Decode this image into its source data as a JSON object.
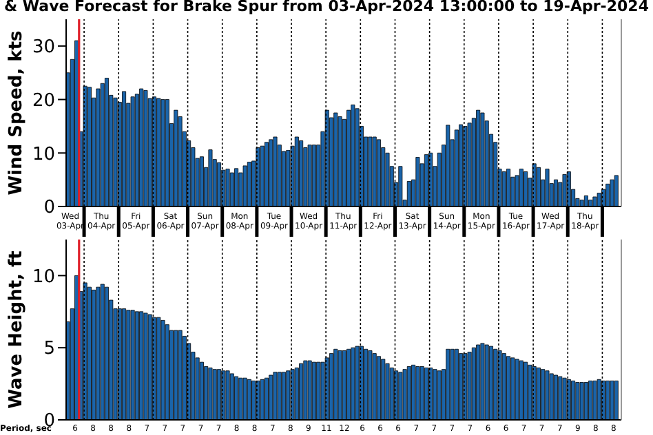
{
  "chart_data": [
    {
      "type": "bar",
      "title": "& Wave Forecast for Brake Spur from 03-Apr-2024 13:00:00 to 19-Apr-2024",
      "ylabel": "Wind Speed, kts",
      "color": "#1a64aa",
      "grid": "x",
      "x": [
        "2024-04-03T13:00",
        "2024-04-03T16:00",
        "2024-04-03T19:00",
        "2024-04-03T22:00",
        "2024-04-04T01:00",
        "2024-04-04T04:00",
        "2024-04-04T07:00",
        "2024-04-04T10:00",
        "2024-04-04T13:00",
        "2024-04-04T16:00",
        "2024-04-04T19:00",
        "2024-04-04T22:00",
        "2024-04-05T01:00",
        "2024-04-05T04:00",
        "2024-04-05T07:00",
        "2024-04-05T10:00",
        "2024-04-05T13:00",
        "2024-04-05T16:00",
        "2024-04-05T19:00",
        "2024-04-05T22:00",
        "2024-04-06T01:00",
        "2024-04-06T04:00",
        "2024-04-06T07:00",
        "2024-04-06T10:00",
        "2024-04-06T13:00",
        "2024-04-06T16:00",
        "2024-04-06T19:00",
        "2024-04-06T22:00",
        "2024-04-07T01:00",
        "2024-04-07T04:00",
        "2024-04-07T07:00",
        "2024-04-07T10:00",
        "2024-04-07T13:00",
        "2024-04-07T16:00",
        "2024-04-07T19:00",
        "2024-04-07T22:00",
        "2024-04-08T01:00",
        "2024-04-08T04:00",
        "2024-04-08T07:00",
        "2024-04-08T10:00",
        "2024-04-08T13:00",
        "2024-04-08T16:00",
        "2024-04-08T19:00",
        "2024-04-08T22:00",
        "2024-04-09T01:00",
        "2024-04-09T04:00",
        "2024-04-09T07:00",
        "2024-04-09T10:00",
        "2024-04-09T13:00",
        "2024-04-09T16:00",
        "2024-04-09T19:00",
        "2024-04-09T22:00",
        "2024-04-10T01:00",
        "2024-04-10T04:00",
        "2024-04-10T07:00",
        "2024-04-10T10:00",
        "2024-04-10T13:00",
        "2024-04-10T16:00",
        "2024-04-10T19:00",
        "2024-04-10T22:00",
        "2024-04-11T01:00",
        "2024-04-11T04:00",
        "2024-04-11T07:00",
        "2024-04-11T10:00",
        "2024-04-11T13:00",
        "2024-04-11T16:00",
        "2024-04-11T19:00",
        "2024-04-11T22:00",
        "2024-04-12T01:00",
        "2024-04-12T04:00",
        "2024-04-12T07:00",
        "2024-04-12T10:00",
        "2024-04-12T13:00",
        "2024-04-12T16:00",
        "2024-04-12T19:00",
        "2024-04-12T22:00",
        "2024-04-13T01:00",
        "2024-04-13T04:00",
        "2024-04-13T07:00",
        "2024-04-13T10:00",
        "2024-04-13T13:00",
        "2024-04-13T16:00",
        "2024-04-13T19:00",
        "2024-04-13T22:00",
        "2024-04-14T01:00",
        "2024-04-14T04:00",
        "2024-04-14T07:00",
        "2024-04-14T10:00",
        "2024-04-14T13:00",
        "2024-04-14T16:00",
        "2024-04-14T19:00",
        "2024-04-14T22:00",
        "2024-04-15T01:00",
        "2024-04-15T04:00",
        "2024-04-15T07:00",
        "2024-04-15T10:00",
        "2024-04-15T13:00",
        "2024-04-15T16:00",
        "2024-04-15T19:00",
        "2024-04-15T22:00",
        "2024-04-16T01:00",
        "2024-04-16T04:00",
        "2024-04-16T07:00",
        "2024-04-16T10:00",
        "2024-04-16T13:00",
        "2024-04-16T16:00",
        "2024-04-16T19:00",
        "2024-04-16T22:00",
        "2024-04-17T01:00",
        "2024-04-17T04:00",
        "2024-04-17T07:00",
        "2024-04-17T10:00",
        "2024-04-17T13:00",
        "2024-04-17T16:00",
        "2024-04-17T19:00",
        "2024-04-17T22:00",
        "2024-04-18T01:00",
        "2024-04-18T04:00",
        "2024-04-18T07:00",
        "2024-04-18T10:00",
        "2024-04-18T13:00",
        "2024-04-18T16:00",
        "2024-04-18T19:00",
        "2024-04-18T22:00",
        "2024-04-19T01:00",
        "2024-04-19T04:00",
        "2024-04-19T07:00",
        "2024-04-19T10:00"
      ],
      "values": [
        25,
        27.5,
        31,
        14,
        22.5,
        22.3,
        20.3,
        22,
        23,
        24,
        20.8,
        20.3,
        19.5,
        21.5,
        19.3,
        20.5,
        21,
        22,
        21.7,
        20.2,
        20.5,
        20.2,
        20,
        20,
        15.5,
        18,
        16.8,
        14,
        12.3,
        11,
        9,
        9.3,
        7.3,
        10.6,
        8.8,
        8.2,
        6.8,
        7,
        6.3,
        7.1,
        6.3,
        7.6,
        8.3,
        8.5,
        11,
        11.3,
        12,
        12.5,
        13,
        11.5,
        10.3,
        10.5,
        11.3,
        13,
        12.3,
        11,
        11.5,
        11.5,
        11.5,
        14,
        18,
        16.6,
        17.5,
        16.8,
        16.3,
        18,
        19,
        18.3,
        15,
        13,
        13,
        13,
        12.5,
        11,
        10,
        7.5,
        4.5,
        7.5,
        1.2,
        4.7,
        5,
        9.2,
        8,
        9.7,
        10,
        7.5,
        10,
        11.5,
        15.2,
        12.5,
        14.3,
        15.3,
        15,
        15.6,
        16.5,
        18,
        17.5,
        16,
        13.5,
        12,
        7,
        6.5,
        7,
        5.5,
        5.8,
        7,
        6.5,
        5.3,
        8,
        7.3,
        5,
        7,
        4.3,
        5,
        4.5,
        6,
        6.5,
        3.2,
        1.5,
        1.2,
        2,
        1.2,
        1.8,
        2.5,
        3.2,
        4.2,
        5,
        5.8
      ],
      "xlim": [
        "2024-04-03T11:31",
        "2024-04-19T13:12"
      ],
      "xticks": [
        {
          "value": "2024-04-03T14:24",
          "label": "Wed 03-Apr"
        },
        {
          "value": "2024-04-04T00:00",
          "label": null
        },
        {
          "value": "2024-04-04T12:00",
          "label": "Thu 04-Apr"
        },
        {
          "value": "2024-04-05T00:00",
          "label": null
        },
        {
          "value": "2024-04-05T12:00",
          "label": "Fri 05-Apr"
        },
        {
          "value": "2024-04-06T00:00",
          "label": null
        },
        {
          "value": "2024-04-06T12:00",
          "label": "Sat 06-Apr"
        },
        {
          "value": "2024-04-07T00:00",
          "label": null
        },
        {
          "value": "2024-04-07T12:00",
          "label": "Sun 07-Apr"
        },
        {
          "value": "2024-04-08T00:00",
          "label": null
        },
        {
          "value": "2024-04-08T12:00",
          "label": "Mon 08-Apr"
        },
        {
          "value": "2024-04-09T00:00",
          "label": null
        },
        {
          "value": "2024-04-09T12:00",
          "label": "Tue 09-Apr"
        },
        {
          "value": "2024-04-10T00:00",
          "label": null
        },
        {
          "value": "2024-04-10T12:00",
          "label": "Wed 10-Apr"
        },
        {
          "value": "2024-04-11T00:00",
          "label": null
        },
        {
          "value": "2024-04-11T12:00",
          "label": "Thu 11-Apr"
        },
        {
          "value": "2024-04-12T00:00",
          "label": null
        },
        {
          "value": "2024-04-12T12:00",
          "label": "Fri 12-Apr"
        },
        {
          "value": "2024-04-13T00:00",
          "label": null
        },
        {
          "value": "2024-04-13T12:00",
          "label": "Sat 13-Apr"
        },
        {
          "value": "2024-04-14T00:00",
          "label": null
        },
        {
          "value": "2024-04-14T12:00",
          "label": "Sun 14-Apr"
        },
        {
          "value": "2024-04-15T00:00",
          "label": null
        },
        {
          "value": "2024-04-15T12:00",
          "label": "Mon 15-Apr"
        },
        {
          "value": "2024-04-16T00:00",
          "label": null
        },
        {
          "value": "2024-04-16T12:00",
          "label": "Tue 16-Apr"
        },
        {
          "value": "2024-04-17T00:00",
          "label": null
        },
        {
          "value": "2024-04-17T12:00",
          "label": "Wed 17-Apr"
        },
        {
          "value": "2024-04-18T00:00",
          "label": null
        },
        {
          "value": "2024-04-18T12:00",
          "label": "Thu 18-Apr"
        },
        {
          "value": "2024-04-19T00:00",
          "label": null
        }
      ],
      "ylim": [
        0,
        35
      ],
      "yticks": [
        0,
        10,
        20,
        30
      ],
      "ref_lines": [
        {
          "axis": "x",
          "value": "2024-04-03T20:30",
          "color": "#e0202a"
        }
      ]
    },
    {
      "type": "bar",
      "ylabel": "Wave Height, ft",
      "color": "#1a64aa",
      "grid": "x",
      "tick_labels": "y",
      "x": [
        "2024-04-03T13:00",
        "2024-04-03T16:00",
        "2024-04-03T19:00",
        "2024-04-03T22:00",
        "2024-04-04T01:00",
        "2024-04-04T04:00",
        "2024-04-04T07:00",
        "2024-04-04T10:00",
        "2024-04-04T13:00",
        "2024-04-04T16:00",
        "2024-04-04T19:00",
        "2024-04-04T22:00",
        "2024-04-05T01:00",
        "2024-04-05T04:00",
        "2024-04-05T07:00",
        "2024-04-05T10:00",
        "2024-04-05T13:00",
        "2024-04-05T16:00",
        "2024-04-05T19:00",
        "2024-04-05T22:00",
        "2024-04-06T01:00",
        "2024-04-06T04:00",
        "2024-04-06T07:00",
        "2024-04-06T10:00",
        "2024-04-06T13:00",
        "2024-04-06T16:00",
        "2024-04-06T19:00",
        "2024-04-06T22:00",
        "2024-04-07T01:00",
        "2024-04-07T04:00",
        "2024-04-07T07:00",
        "2024-04-07T10:00",
        "2024-04-07T13:00",
        "2024-04-07T16:00",
        "2024-04-07T19:00",
        "2024-04-07T22:00",
        "2024-04-08T01:00",
        "2024-04-08T04:00",
        "2024-04-08T07:00",
        "2024-04-08T10:00",
        "2024-04-08T13:00",
        "2024-04-08T16:00",
        "2024-04-08T19:00",
        "2024-04-08T22:00",
        "2024-04-09T01:00",
        "2024-04-09T04:00",
        "2024-04-09T07:00",
        "2024-04-09T10:00",
        "2024-04-09T13:00",
        "2024-04-09T16:00",
        "2024-04-09T19:00",
        "2024-04-09T22:00",
        "2024-04-10T01:00",
        "2024-04-10T04:00",
        "2024-04-10T07:00",
        "2024-04-10T10:00",
        "2024-04-10T13:00",
        "2024-04-10T16:00",
        "2024-04-10T19:00",
        "2024-04-10T22:00",
        "2024-04-11T01:00",
        "2024-04-11T04:00",
        "2024-04-11T07:00",
        "2024-04-11T10:00",
        "2024-04-11T13:00",
        "2024-04-11T16:00",
        "2024-04-11T19:00",
        "2024-04-11T22:00",
        "2024-04-12T01:00",
        "2024-04-12T04:00",
        "2024-04-12T07:00",
        "2024-04-12T10:00",
        "2024-04-12T13:00",
        "2024-04-12T16:00",
        "2024-04-12T19:00",
        "2024-04-12T22:00",
        "2024-04-13T01:00",
        "2024-04-13T04:00",
        "2024-04-13T07:00",
        "2024-04-13T10:00",
        "2024-04-13T13:00",
        "2024-04-13T16:00",
        "2024-04-13T19:00",
        "2024-04-13T22:00",
        "2024-04-14T01:00",
        "2024-04-14T04:00",
        "2024-04-14T07:00",
        "2024-04-14T10:00",
        "2024-04-14T13:00",
        "2024-04-14T16:00",
        "2024-04-14T19:00",
        "2024-04-14T22:00",
        "2024-04-15T01:00",
        "2024-04-15T04:00",
        "2024-04-15T07:00",
        "2024-04-15T10:00",
        "2024-04-15T13:00",
        "2024-04-15T16:00",
        "2024-04-15T19:00",
        "2024-04-15T22:00",
        "2024-04-16T01:00",
        "2024-04-16T04:00",
        "2024-04-16T07:00",
        "2024-04-16T10:00",
        "2024-04-16T13:00",
        "2024-04-16T16:00",
        "2024-04-16T19:00",
        "2024-04-16T22:00",
        "2024-04-17T01:00",
        "2024-04-17T04:00",
        "2024-04-17T07:00",
        "2024-04-17T10:00",
        "2024-04-17T13:00",
        "2024-04-17T16:00",
        "2024-04-17T19:00",
        "2024-04-17T22:00",
        "2024-04-18T01:00",
        "2024-04-18T04:00",
        "2024-04-18T07:00",
        "2024-04-18T10:00",
        "2024-04-18T13:00",
        "2024-04-18T16:00",
        "2024-04-18T19:00",
        "2024-04-18T22:00",
        "2024-04-19T01:00",
        "2024-04-19T04:00",
        "2024-04-19T07:00",
        "2024-04-19T10:00"
      ],
      "values": [
        6.8,
        7.7,
        10,
        8.9,
        9.5,
        9.2,
        9,
        9.2,
        9.4,
        9.2,
        8.3,
        7.7,
        7.7,
        7.7,
        7.6,
        7.6,
        7.5,
        7.5,
        7.4,
        7.3,
        7.1,
        7.1,
        6.9,
        6.6,
        6.2,
        6.2,
        6.2,
        5.8,
        5.3,
        4.7,
        4.3,
        4,
        3.7,
        3.6,
        3.5,
        3.5,
        3.4,
        3.4,
        3.2,
        3,
        2.9,
        2.9,
        2.8,
        2.7,
        2.7,
        2.8,
        2.9,
        3.1,
        3.3,
        3.3,
        3.3,
        3.4,
        3.5,
        3.6,
        3.9,
        4.1,
        4.1,
        4,
        4,
        4,
        4.3,
        4.6,
        4.9,
        4.8,
        4.8,
        4.9,
        5,
        5.1,
        5.1,
        4.9,
        4.8,
        4.6,
        4.4,
        4.2,
        3.9,
        3.6,
        3.4,
        3.3,
        3.5,
        3.7,
        3.8,
        3.7,
        3.7,
        3.6,
        3.6,
        3.5,
        3.4,
        3.5,
        4.9,
        4.9,
        4.9,
        4.6,
        4.6,
        4.7,
        5,
        5.2,
        5.3,
        5.2,
        5.1,
        4.9,
        4.8,
        4.6,
        4.4,
        4.3,
        4.2,
        4.1,
        4,
        3.8,
        3.7,
        3.6,
        3.5,
        3.4,
        3.2,
        3.1,
        3,
        2.9,
        2.8,
        2.7,
        2.6,
        2.6,
        2.6,
        2.7,
        2.7,
        2.8,
        2.7,
        2.7,
        2.7,
        2.7
      ],
      "xlim": [
        "2024-04-03T11:31",
        "2024-04-19T13:12"
      ],
      "xticks": [
        {
          "value": "2024-04-04T00:00",
          "label": null
        },
        {
          "value": "2024-04-05T00:00",
          "label": null
        },
        {
          "value": "2024-04-06T00:00",
          "label": null
        },
        {
          "value": "2024-04-07T00:00",
          "label": null
        },
        {
          "value": "2024-04-08T00:00",
          "label": null
        },
        {
          "value": "2024-04-09T00:00",
          "label": null
        },
        {
          "value": "2024-04-10T00:00",
          "label": null
        },
        {
          "value": "2024-04-11T00:00",
          "label": null
        },
        {
          "value": "2024-04-12T00:00",
          "label": null
        },
        {
          "value": "2024-04-13T00:00",
          "label": null
        },
        {
          "value": "2024-04-14T00:00",
          "label": null
        },
        {
          "value": "2024-04-15T00:00",
          "label": null
        },
        {
          "value": "2024-04-16T00:00",
          "label": null
        },
        {
          "value": "2024-04-17T00:00",
          "label": null
        },
        {
          "value": "2024-04-18T00:00",
          "label": null
        },
        {
          "value": "2024-04-19T00:00",
          "label": null
        }
      ],
      "ylim": [
        0,
        12.5
      ],
      "yticks": [
        0,
        5,
        10
      ],
      "ref_lines": [
        {
          "axis": "x",
          "value": "2024-04-03T20:30",
          "color": "#e0202a"
        }
      ],
      "annotations": [
        "Period, sec",
        "6",
        "8",
        "8",
        "8",
        "7",
        "7",
        "7",
        "7",
        "7",
        "8",
        "8",
        "7",
        "8",
        "9",
        "11",
        "12",
        "6",
        "6",
        "6",
        "7",
        "7",
        "7",
        "7",
        "6",
        "6",
        "7",
        "7",
        "7",
        "9",
        "8",
        "8"
      ]
    }
  ]
}
